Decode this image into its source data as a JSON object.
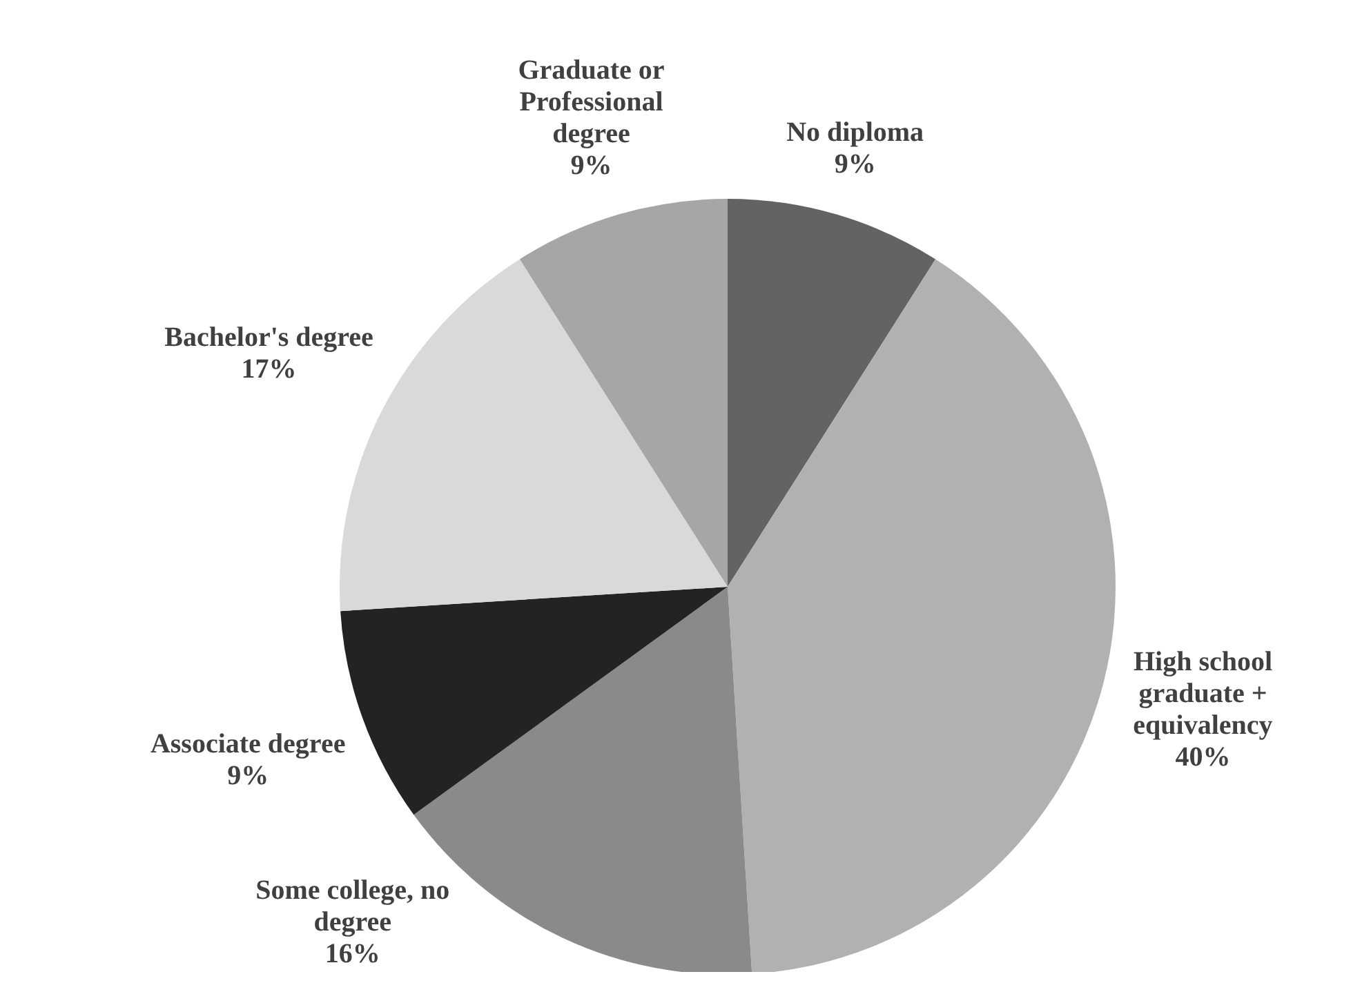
{
  "chart_data": {
    "type": "pie",
    "categories": [
      "No diploma",
      "High school graduate + equivalency",
      "Some college, no degree",
      "Associate degree",
      "Bachelor's degree",
      "Graduate or Professional degree"
    ],
    "values": [
      9,
      40,
      16,
      9,
      17,
      9
    ],
    "value_labels": [
      "9%",
      "40%",
      "16%",
      "9%",
      "17%",
      "9%"
    ],
    "colors": [
      "#636363",
      "#b1b1b1",
      "#8a8a8a",
      "#232323",
      "#d9d9d9",
      "#a6a6a6"
    ]
  }
}
